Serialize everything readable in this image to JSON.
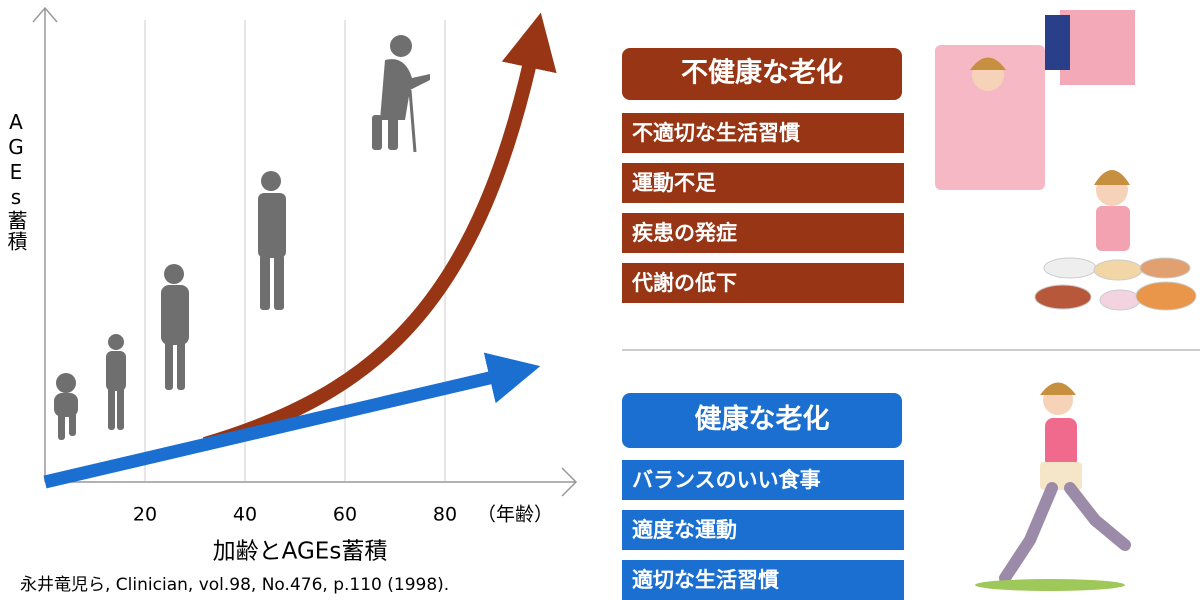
{
  "chart": {
    "y_axis_label": "AGEs蓄積",
    "x_ticks": [
      20,
      40,
      60,
      80
    ],
    "x_unit": "（年齢）",
    "title": "加齢とAGEs蓄積",
    "citation": "永井竜児ら, Clinician, vol.98, No.476, p.110 (1998)."
  },
  "unhealthy": {
    "title": "不健康な老化",
    "items": [
      "不適切な生活習慣",
      "運動不足",
      "疾患の発症",
      "代謝の低下"
    ]
  },
  "healthy": {
    "title": "健康な老化",
    "items": [
      "バランスのいい食事",
      "適度な運動",
      "適切な生活習慣"
    ]
  }
}
